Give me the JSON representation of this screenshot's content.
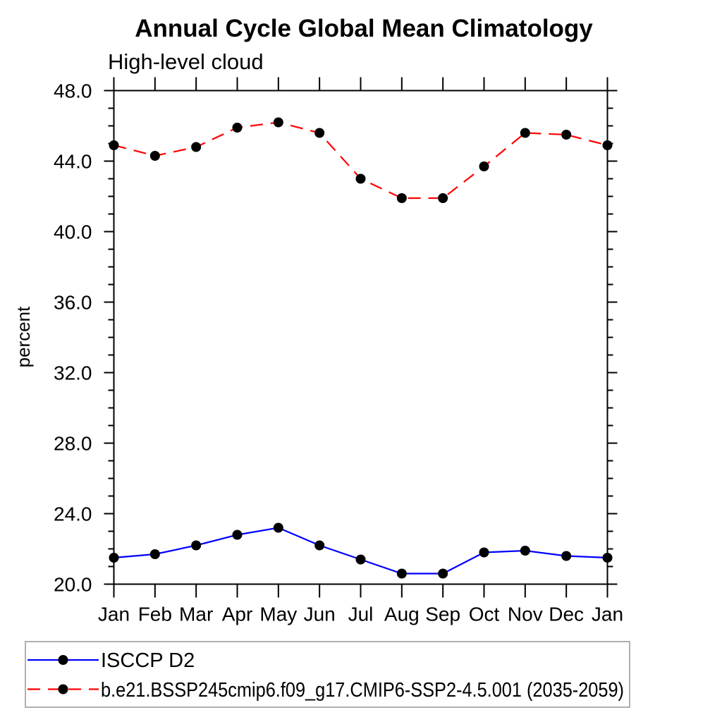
{
  "header": {
    "title": "Annual Cycle Global Mean Climatology",
    "subtitle": "High-level cloud"
  },
  "chart_data": {
    "type": "line",
    "title": "Annual Cycle Global Mean Climatology",
    "subtitle": "High-level cloud",
    "xlabel": "",
    "ylabel": "percent",
    "ylim": [
      20.0,
      48.0
    ],
    "ytick_step_major": 4.0,
    "ytick_step_minor": 1.0,
    "ytick_labels": [
      "20.0",
      "24.0",
      "28.0",
      "32.0",
      "36.0",
      "40.0",
      "44.0",
      "48.0"
    ],
    "categories": [
      "Jan",
      "Feb",
      "Mar",
      "Apr",
      "May",
      "Jun",
      "Jul",
      "Aug",
      "Sep",
      "Oct",
      "Nov",
      "Dec",
      "Jan"
    ],
    "grid": false,
    "legend_position": "bottom-left-outside-box",
    "axis_color": "#000000",
    "legend_border_color": "#b0b0b0",
    "series": [
      {
        "name": "ISCCP D2",
        "color": "#0000ff",
        "line_style": "solid",
        "marker": "filled-circle",
        "marker_color": "#000000",
        "values": [
          21.5,
          21.7,
          22.2,
          22.8,
          23.2,
          22.2,
          21.4,
          20.6,
          20.6,
          21.8,
          21.9,
          21.6,
          21.5
        ]
      },
      {
        "name": "b.e21.BSSP245cmip6.f09_g17.CMIP6-SSP2-4.5.001 (2035-2059)",
        "color": "#ff0000",
        "line_style": "dashed",
        "marker": "filled-circle",
        "marker_color": "#000000",
        "values": [
          44.9,
          44.3,
          44.8,
          45.9,
          46.2,
          45.6,
          43.0,
          41.9,
          41.9,
          43.7,
          45.6,
          45.5,
          44.9
        ]
      }
    ]
  }
}
